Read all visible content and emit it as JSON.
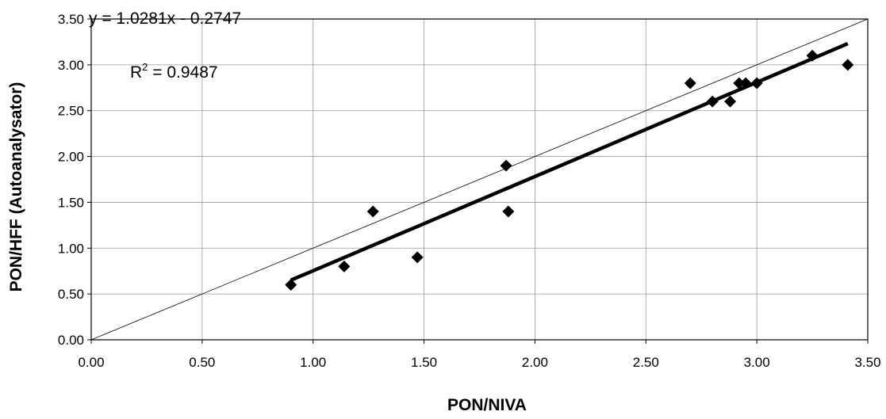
{
  "chart_data": {
    "type": "scatter",
    "title": "",
    "xlabel": "PON/NIVA",
    "ylabel": "PON/HFF (Autoanalysator)",
    "xlim": [
      0,
      3.5
    ],
    "ylim": [
      0,
      3.5
    ],
    "x_ticks": [
      "0.00",
      "0.50",
      "1.00",
      "1.50",
      "2.00",
      "2.50",
      "3.00",
      "3.50"
    ],
    "y_ticks": [
      "0.00",
      "0.50",
      "1.00",
      "1.50",
      "2.00",
      "2.50",
      "3.00",
      "3.50"
    ],
    "grid": true,
    "legend": false,
    "marker": "diamond",
    "marker_color": "#000000",
    "series": [
      {
        "points": [
          {
            "x": 0.9,
            "y": 0.6
          },
          {
            "x": 1.14,
            "y": 0.8
          },
          {
            "x": 1.27,
            "y": 1.4
          },
          {
            "x": 1.47,
            "y": 0.9
          },
          {
            "x": 1.87,
            "y": 1.9
          },
          {
            "x": 1.88,
            "y": 1.4
          },
          {
            "x": 2.7,
            "y": 2.8
          },
          {
            "x": 2.8,
            "y": 2.6
          },
          {
            "x": 2.88,
            "y": 2.6
          },
          {
            "x": 2.92,
            "y": 2.8
          },
          {
            "x": 2.95,
            "y": 2.8
          },
          {
            "x": 3.0,
            "y": 2.8
          },
          {
            "x": 3.25,
            "y": 3.1
          },
          {
            "x": 3.41,
            "y": 3.0
          }
        ]
      }
    ],
    "trendline": {
      "slope": 1.0281,
      "intercept": -0.2747,
      "x_range": [
        0.9,
        3.41
      ],
      "equation": "y = 1.0281x - 0.2747",
      "r2_prefix": "R",
      "r2_sup": "2",
      "r2_suffix": " = 0.9487"
    },
    "reference_line": {
      "from": [
        0,
        0
      ],
      "to": [
        3.5,
        3.5
      ]
    }
  }
}
